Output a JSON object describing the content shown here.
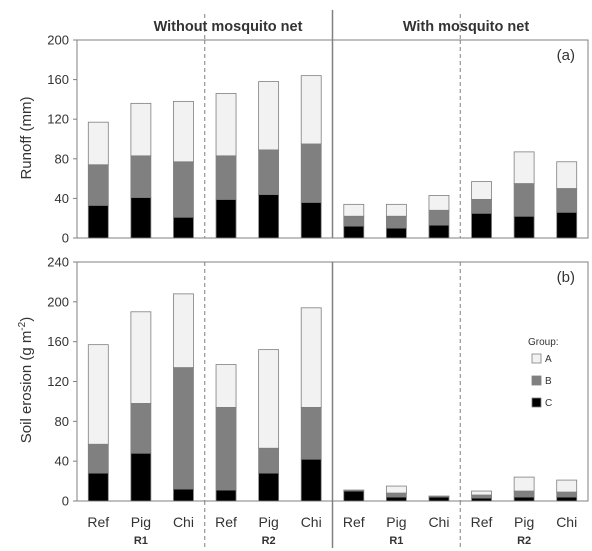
{
  "chart_data": {
    "type": "bar",
    "stacked": true,
    "panel_headers": [
      "Without mosquito net",
      "With mosquito net"
    ],
    "categories": [
      "Ref",
      "Pig",
      "Chi",
      "Ref",
      "Pig",
      "Chi",
      "Ref",
      "Pig",
      "Chi",
      "Ref",
      "Pig",
      "Chi"
    ],
    "groups": [
      {
        "label": "R1"
      },
      {
        "label": "R2"
      },
      {
        "label": "R1"
      },
      {
        "label": "R2"
      }
    ],
    "legend": {
      "title": "Group:",
      "position": "right",
      "entries": [
        {
          "name": "A",
          "color": "#f2f2f2"
        },
        {
          "name": "B",
          "color": "#808080"
        },
        {
          "name": "C",
          "color": "#000000"
        }
      ]
    },
    "panels": [
      {
        "label": "(a)",
        "ylabel": "Runoff (mm)",
        "ylim": [
          0,
          200
        ],
        "yticks": [
          0,
          40,
          80,
          120,
          160,
          200
        ],
        "series": [
          {
            "name": "C",
            "values": [
              33,
              41,
              21,
              39,
              44,
              36,
              12,
              10,
              13,
              25,
              22,
              26
            ]
          },
          {
            "name": "B",
            "values": [
              41,
              42,
              56,
              44,
              45,
              59,
              10,
              12,
              15,
              14,
              33,
              24
            ]
          },
          {
            "name": "A",
            "values": [
              43,
              53,
              61,
              63,
              69,
              69,
              12,
              12,
              15,
              18,
              32,
              27
            ]
          }
        ]
      },
      {
        "label": "(b)",
        "ylabel": "Soil erosion (g m",
        "ylabel_superscript": "-2",
        "ylabel_suffix": ")",
        "ylim": [
          0,
          240
        ],
        "yticks": [
          0,
          40,
          80,
          120,
          160,
          200,
          240
        ],
        "series": [
          {
            "name": "C",
            "values": [
              28,
              48,
              12,
              11,
              28,
              42,
              10,
              4,
              4,
              3,
              4,
              4
            ]
          },
          {
            "name": "B",
            "values": [
              29,
              50,
              122,
              83,
              25,
              52,
              1,
              4,
              1,
              3,
              6,
              5
            ]
          },
          {
            "name": "A",
            "values": [
              100,
              92,
              74,
              43,
              99,
              100,
              0,
              7,
              0,
              4,
              14,
              12
            ]
          }
        ]
      }
    ]
  }
}
